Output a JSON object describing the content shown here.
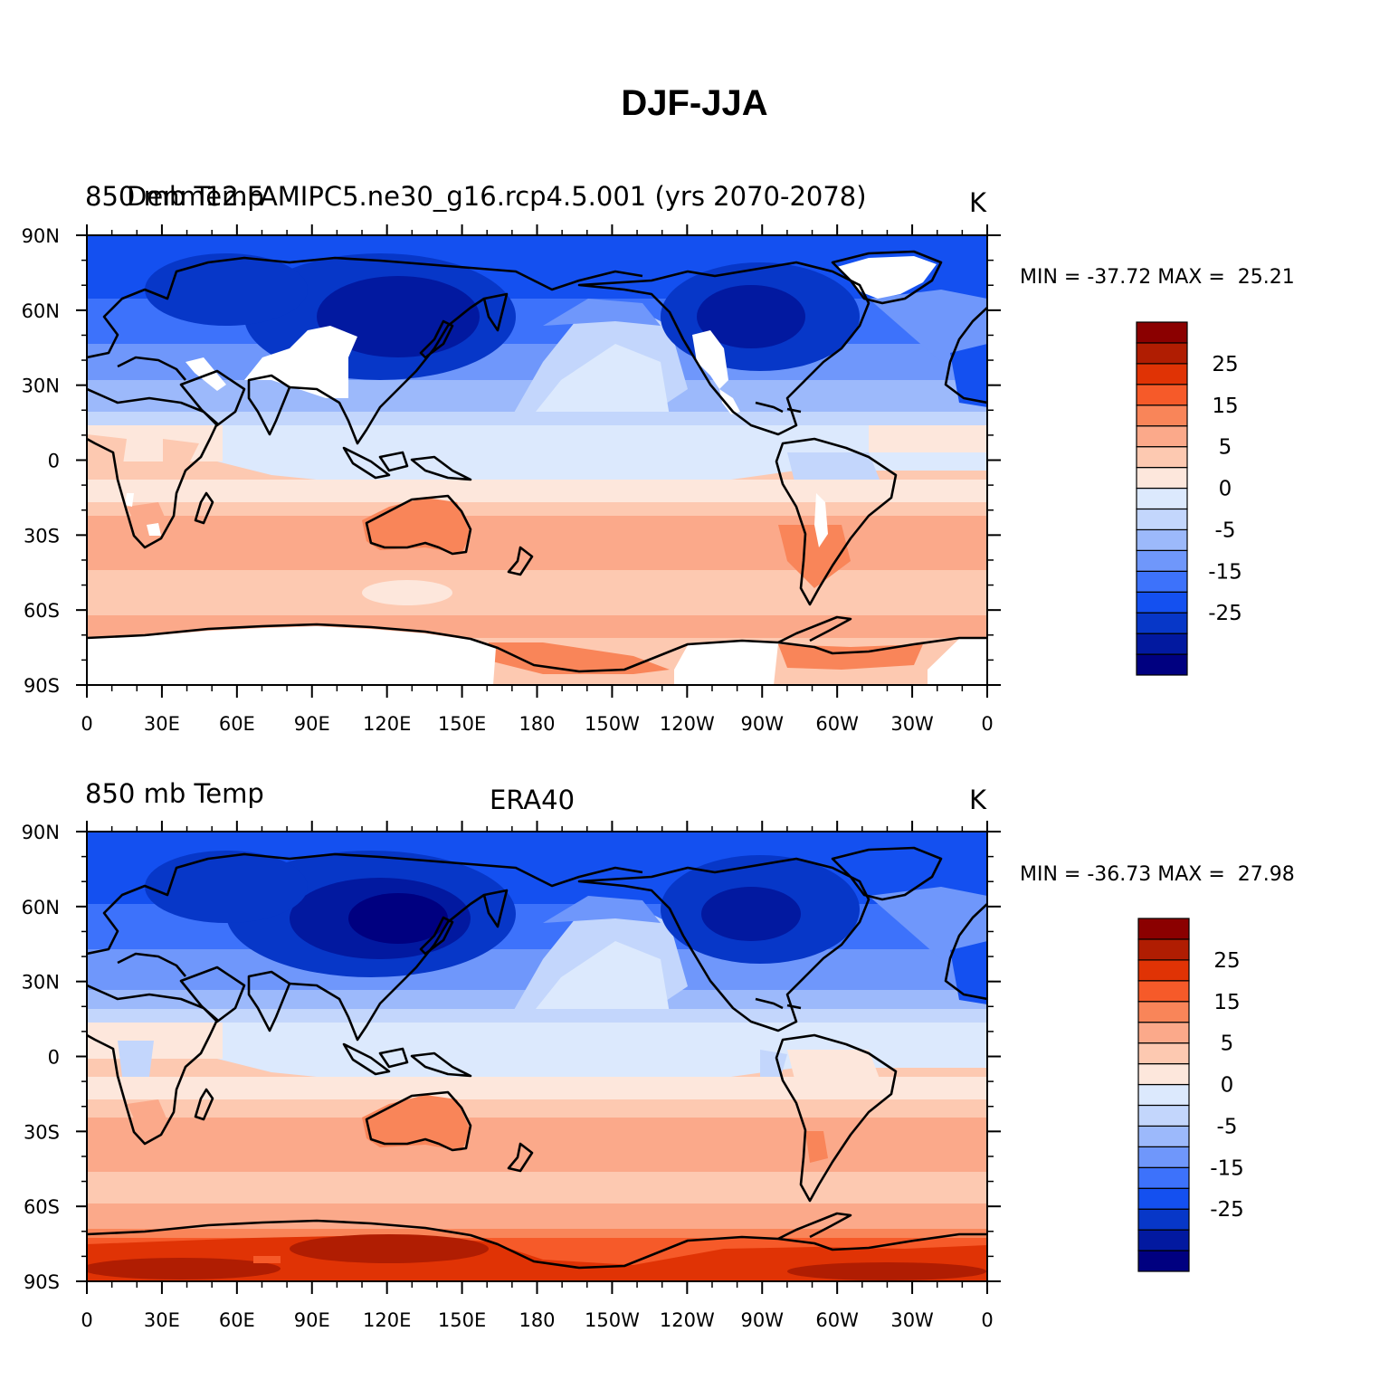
{
  "title": "DJF-JJA",
  "colorbar": {
    "labels": [
      "25",
      "15",
      "5",
      "0",
      "-5",
      "-15",
      "-25"
    ],
    "colors": [
      "#000080",
      "#0219a0",
      "#0737c8",
      "#1450f0",
      "#3d72fb",
      "#6f97fb",
      "#9cb9fb",
      "#c3d6fc",
      "#dce9fd",
      "#fde7dc",
      "#fdc9b1",
      "#fba98a",
      "#f98559",
      "#f65a29",
      "#e03305",
      "#b01d02",
      "#8b0000"
    ]
  },
  "panels": [
    {
      "left_label": "850 mb Temp",
      "overlay_label": "Denm12.FAMIPC5.ne30_g16.rcp4.5.001 (yrs 2070-2078)",
      "center_label": "",
      "units": "K",
      "minmax": "MIN = -37.72 MAX =  25.21",
      "lat_ticks": [
        "90N",
        "60N",
        "30N",
        "0",
        "30S",
        "60S",
        "90S"
      ],
      "lon_ticks": [
        "0",
        "30E",
        "60E",
        "90E",
        "120E",
        "150E",
        "180",
        "150W",
        "120W",
        "90W",
        "60W",
        "30W",
        "0"
      ]
    },
    {
      "left_label": "850 mb Temp",
      "overlay_label": "",
      "center_label": "ERA40",
      "units": "K",
      "minmax": "MIN = -36.73 MAX =  27.98",
      "lat_ticks": [
        "90N",
        "60N",
        "30N",
        "0",
        "30S",
        "60S",
        "90S"
      ],
      "lon_ticks": [
        "0",
        "30E",
        "60E",
        "90E",
        "120E",
        "150E",
        "180",
        "150W",
        "120W",
        "90W",
        "60W",
        "30W",
        "0"
      ]
    }
  ]
}
